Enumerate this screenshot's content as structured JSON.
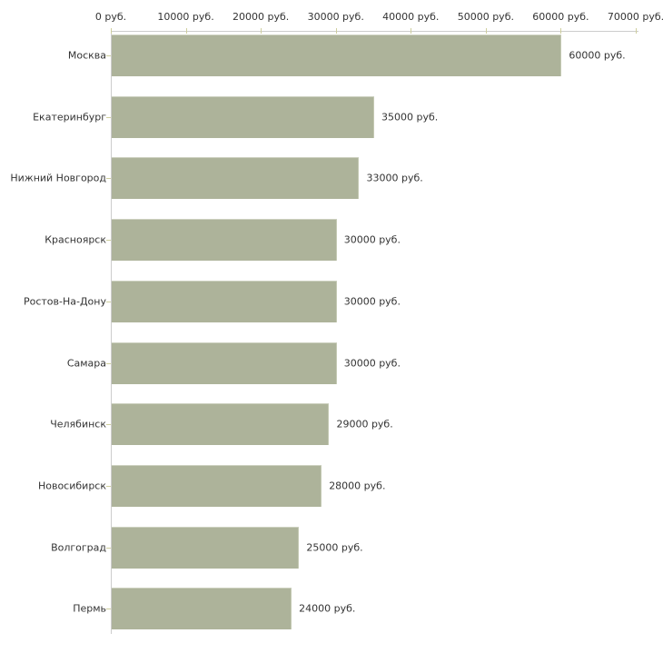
{
  "chart_data": {
    "type": "bar",
    "orientation": "horizontal",
    "title": "",
    "xlabel": "",
    "ylabel": "",
    "unit": "руб.",
    "xlim": [
      0,
      70000
    ],
    "x_ticks": [
      0,
      10000,
      20000,
      30000,
      40000,
      50000,
      60000,
      70000
    ],
    "x_tick_labels": [
      "0 руб.",
      "10000 руб.",
      "20000 руб.",
      "30000 руб.",
      "40000 руб.",
      "50000 руб.",
      "60000 руб.",
      "70000 руб."
    ],
    "categories": [
      "Москва",
      "Екатеринбург",
      "Нижний Новгород",
      "Красноярск",
      "Ростов-На-Дону",
      "Самара",
      "Челябинск",
      "Новосибирск",
      "Волгоград",
      "Пермь"
    ],
    "values": [
      60000,
      35000,
      33000,
      30000,
      30000,
      30000,
      29000,
      28000,
      25000,
      24000
    ],
    "value_labels": [
      "60000 руб.",
      "35000 руб.",
      "33000 руб.",
      "30000 руб.",
      "30000 руб.",
      "30000 руб.",
      "29000 руб.",
      "28000 руб.",
      "25000 руб.",
      "24000 руб."
    ],
    "legend": null,
    "grid": false,
    "colors": {
      "bar_fill": "#adb39a",
      "bar_highlight": "#cdd1c0",
      "axis_line": "#cccccc",
      "tick_mark": "#cfcf9e",
      "text": "#333333",
      "background": "#ffffff"
    }
  }
}
